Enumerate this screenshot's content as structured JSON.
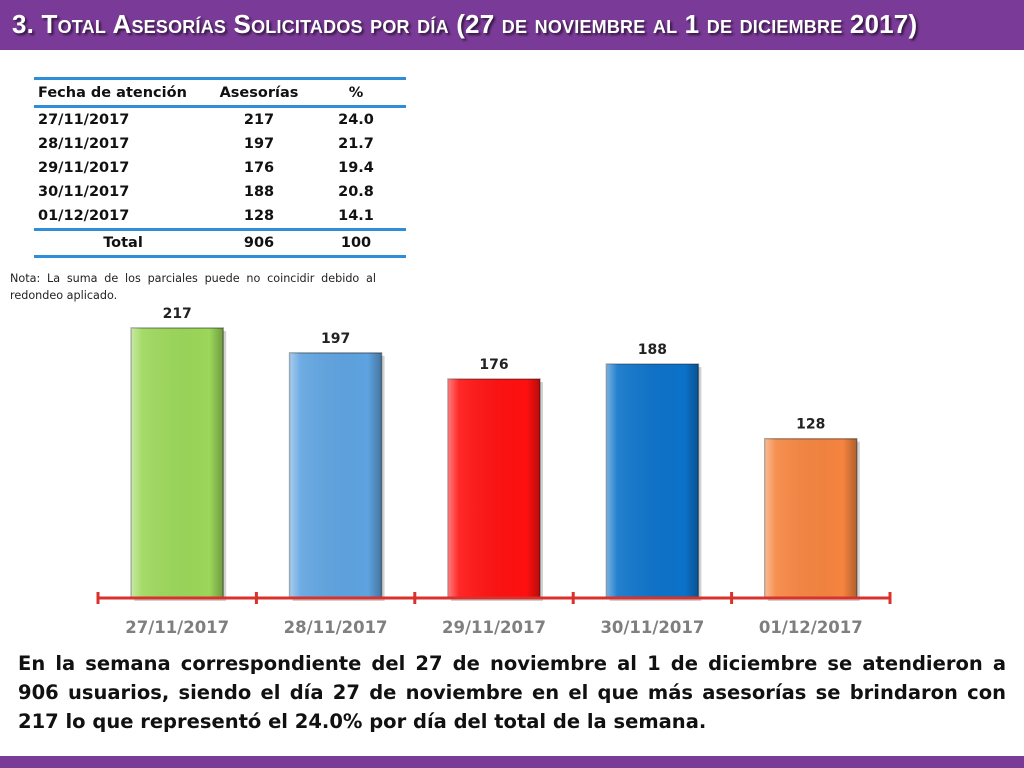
{
  "header": {
    "title": "3. Total Asesorías Solicitados por día (27 de noviembre al 1 de diciembre 2017)",
    "bar_color": "#7a3a97"
  },
  "table": {
    "headers": [
      "Fecha de atención",
      "Asesorías",
      "%"
    ],
    "rows": [
      [
        "27/11/2017",
        "217",
        "24.0"
      ],
      [
        "28/11/2017",
        "197",
        "21.7"
      ],
      [
        "29/11/2017",
        "176",
        "19.4"
      ],
      [
        "30/11/2017",
        "188",
        "20.8"
      ],
      [
        "01/12/2017",
        "128",
        "14.1"
      ]
    ],
    "total": [
      "Total",
      "906",
      "100"
    ],
    "rule_color": "#2e8fd8"
  },
  "note": "Nota: La suma de los parciales puede no coincidir debido al redondeo aplicado.",
  "chart_data": {
    "type": "bar",
    "categories": [
      "27/11/2017",
      "28/11/2017",
      "29/11/2017",
      "30/11/2017",
      "01/12/2017"
    ],
    "values": [
      217,
      197,
      176,
      188,
      128
    ],
    "colors": [
      "#9bd759",
      "#5ea3e0",
      "#ff1010",
      "#0c72c9",
      "#f5843f"
    ],
    "data_labels": [
      "217",
      "197",
      "176",
      "188",
      "128"
    ],
    "axis_color": "#d9312b",
    "ylim": [
      0,
      217
    ],
    "grid": false,
    "legend": "none"
  },
  "summary": "En la semana correspondiente del 27 de noviembre al 1 de diciembre se atendieron a 906 usuarios, siendo el día 27 de noviembre en el que más asesorías se brindaron con 217 lo que representó el 24.0% por día del total de la semana."
}
